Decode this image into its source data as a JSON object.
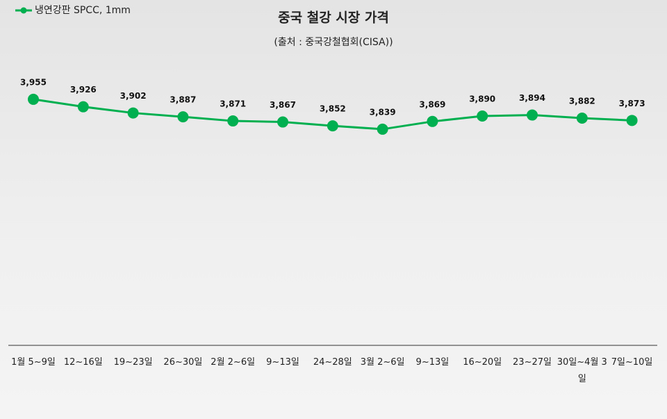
{
  "chart_data": {
    "type": "line",
    "title": "중국 철강 시장 가격",
    "subtitle": "(출처 : 중국강철협회(CISA))",
    "categories": [
      "1월 5~9일",
      "12~16일",
      "19~23일",
      "26~30일",
      "2월 2~6일",
      "9~13일",
      "24~28일",
      "3월 2~6일",
      "9~13일",
      "16~20일",
      "23~27일",
      "30일~4월 3일",
      "7일~10일"
    ],
    "series": [
      {
        "name": "냉연강판 SPCC, 1mm",
        "color": "#00b050",
        "values": [
          3955,
          3926,
          3902,
          3887,
          3871,
          3867,
          3852,
          3839,
          3869,
          3890,
          3894,
          3882,
          3873
        ],
        "value_labels": [
          "3,955",
          "3,926",
          "3,902",
          "3,887",
          "3,871",
          "3,867",
          "3,852",
          "3,839",
          "3,869",
          "3,890",
          "3,894",
          "3,882",
          "3,873"
        ]
      }
    ],
    "ylim": [
      3000,
      4300
    ],
    "legend": "top-left"
  }
}
